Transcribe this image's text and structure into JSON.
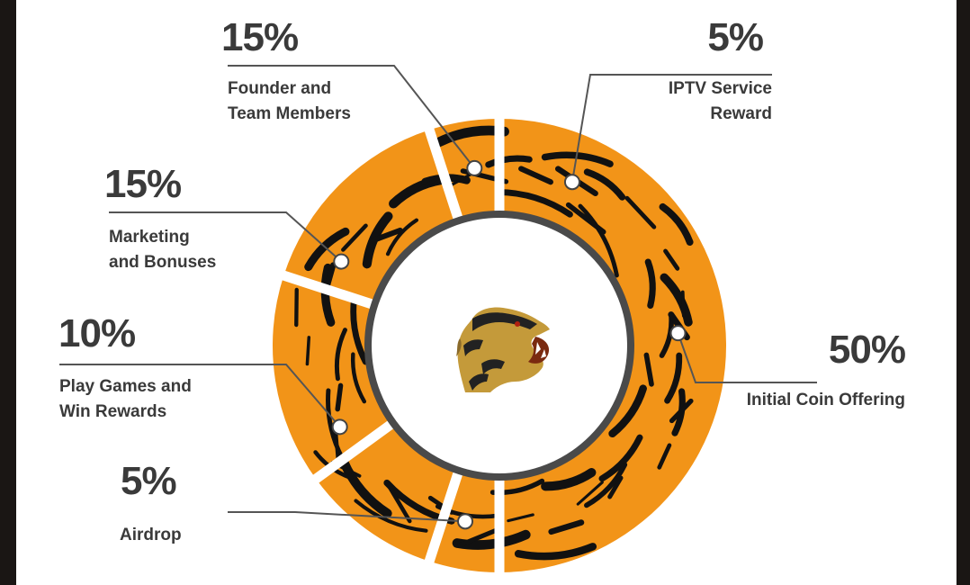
{
  "chart_data": {
    "type": "pie",
    "variant": "donut",
    "slices": [
      {
        "label": "Initial Coin Offering",
        "value": 50,
        "display": "50%"
      },
      {
        "label": "Airdrop",
        "value": 5,
        "display": "5%"
      },
      {
        "label": "Play Games and\nWin Rewards",
        "value": 10,
        "display": "10%"
      },
      {
        "label": "Marketing\nand Bonuses",
        "value": 15,
        "display": "15%"
      },
      {
        "label": "Founder and\nTeam Members",
        "value": 15,
        "display": "15%"
      },
      {
        "label": "IPTV Service\nReward",
        "value": 5,
        "display": "5%"
      }
    ],
    "ring_color": "#f29418",
    "stripe_color": "#111111",
    "hole_border_color": "#4a4a4a",
    "center_icon": "tiger-head-logo-icon",
    "legend": "none"
  }
}
